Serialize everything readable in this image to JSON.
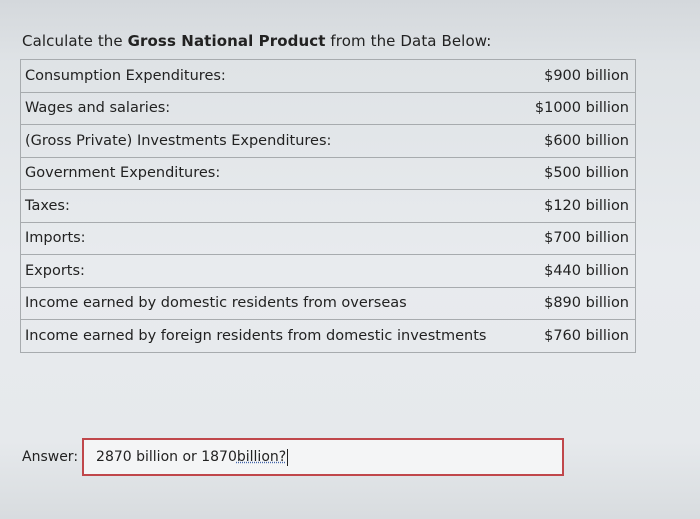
{
  "question": {
    "prefix": "Calculate the ",
    "bold": "Gross National Product",
    "suffix": " from the Data Below:"
  },
  "rows": [
    {
      "label": "Consumption Expenditures:",
      "value": "$900 billion"
    },
    {
      "label": "Wages and salaries:",
      "value": "$1000 billion"
    },
    {
      "label": "(Gross Private) Investments Expenditures:",
      "value": "$600 billion"
    },
    {
      "label": "Government Expenditures:",
      "value": "$500 billion"
    },
    {
      "label": "Taxes:",
      "value": "$120 billion"
    },
    {
      "label": "Imports:",
      "value": "$700 billion"
    },
    {
      "label": "Exports:",
      "value": "$440 billion"
    },
    {
      "label": "Income earned by domestic residents from overseas",
      "value": "$890 billion"
    },
    {
      "label": "Income earned by foreign residents from domestic investments",
      "value": "$760 billion"
    }
  ],
  "answer": {
    "label": "Answer:",
    "value_main": "2870 billion or 1870 ",
    "value_flagged": "billion?"
  }
}
